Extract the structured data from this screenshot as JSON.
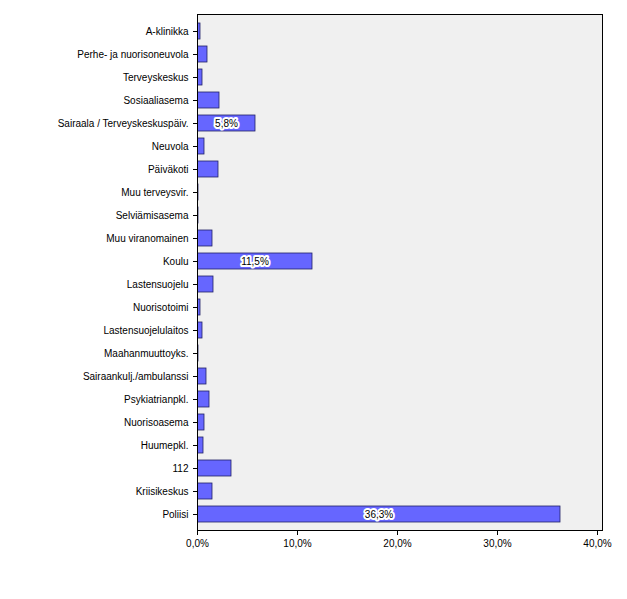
{
  "chart_data": {
    "type": "bar",
    "orientation": "horizontal",
    "categories": [
      "A-klinikka",
      "Perhe- ja nuorisoneuvola",
      "Terveyskeskus",
      "Sosiaaliasema",
      "Sairaala / Terveyskeskuspäiv.",
      "Neuvola",
      "Päiväkoti",
      "Muu terveysvir.",
      "Selviämisasema",
      "Muu viranomainen",
      "Koulu",
      "Lastensuojelu",
      "Nuorisotoimi",
      "Lastensuojelulaitos",
      "Maahanmuuttoyks.",
      "Sairaankulj./ambulanssi",
      "Psykiatrianpkl.",
      "Nuorisoasema",
      "Huumepkl.",
      "112",
      "Kriisikeskus",
      "Poliisi"
    ],
    "values": [
      0.3,
      1.0,
      0.5,
      2.2,
      5.8,
      0.7,
      2.1,
      0.1,
      0.1,
      1.5,
      11.5,
      1.6,
      0.3,
      0.5,
      0.1,
      0.9,
      1.2,
      0.7,
      0.6,
      3.4,
      1.5,
      36.3
    ],
    "value_labels": [
      null,
      null,
      null,
      null,
      "5,8%",
      null,
      null,
      null,
      null,
      null,
      "11,5%",
      null,
      null,
      null,
      null,
      null,
      null,
      null,
      null,
      null,
      null,
      "36,3%"
    ],
    "data_labels": true,
    "color": "#6666ff",
    "xlim": [
      0,
      40.5
    ],
    "xticks": [
      {
        "value": 0,
        "label": "0,0%"
      },
      {
        "value": 10,
        "label": "10,0%"
      },
      {
        "value": 20,
        "label": "20,0%"
      },
      {
        "value": 30,
        "label": "30,0%"
      },
      {
        "value": 40,
        "label": "40,0%"
      }
    ],
    "grid": false
  }
}
